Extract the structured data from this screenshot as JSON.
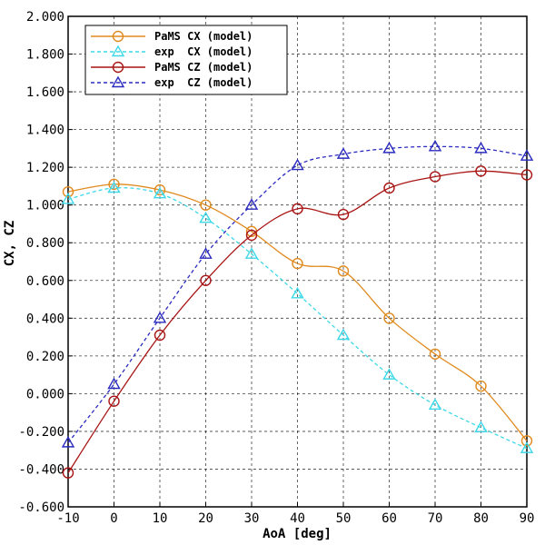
{
  "chart_data": {
    "type": "line",
    "xlabel": "AoA [deg]",
    "ylabel": "CX, CZ",
    "xlim": [
      -10,
      90
    ],
    "ylim": [
      -0.6,
      2.0
    ],
    "xticks": [
      -10,
      0,
      10,
      20,
      30,
      40,
      50,
      60,
      70,
      80,
      90
    ],
    "yticks": [
      -0.6,
      -0.4,
      -0.2,
      0.0,
      0.2,
      0.4,
      0.6,
      0.8,
      1.0,
      1.2,
      1.4,
      1.6,
      1.8,
      2.0
    ],
    "xtick_labels": [
      "-10",
      "0",
      "10",
      "20",
      "30",
      "40",
      "50",
      "60",
      "70",
      "80",
      "90"
    ],
    "ytick_labels": [
      "-0.600",
      "-0.400",
      "-0.200",
      "0.000",
      "0.200",
      "0.400",
      "0.600",
      "0.800",
      "1.000",
      "1.200",
      "1.400",
      "1.600",
      "1.800",
      "2.000"
    ],
    "grid": true,
    "legend_position": "top-left",
    "x": [
      -10,
      0,
      10,
      20,
      30,
      40,
      50,
      60,
      70,
      80,
      90
    ],
    "series": [
      {
        "name": "PaMS CX (model)",
        "color": "#e08a1e",
        "marker": "circle",
        "dashed": false,
        "values": [
          1.07,
          1.11,
          1.08,
          1.0,
          0.86,
          0.69,
          0.65,
          0.4,
          0.21,
          0.04,
          -0.25
        ]
      },
      {
        "name": "exp  CX (model)",
        "color": "#3dd8e8",
        "marker": "triangle",
        "dashed": true,
        "values": [
          1.03,
          1.09,
          1.06,
          0.93,
          0.74,
          0.53,
          0.31,
          0.1,
          -0.06,
          -0.18,
          -0.29
        ]
      },
      {
        "name": "PaMS CZ (model)",
        "color": "#a81414",
        "marker": "circle",
        "dashed": false,
        "values": [
          -0.42,
          -0.04,
          0.31,
          0.6,
          0.84,
          0.98,
          0.95,
          1.09,
          1.15,
          1.18,
          1.16
        ]
      },
      {
        "name": "exp  CZ (model)",
        "color": "#2a2ac0",
        "marker": "triangle",
        "dashed": true,
        "values": [
          -0.26,
          0.05,
          0.4,
          0.74,
          1.0,
          1.21,
          1.27,
          1.3,
          1.31,
          1.3,
          1.26
        ]
      }
    ]
  }
}
